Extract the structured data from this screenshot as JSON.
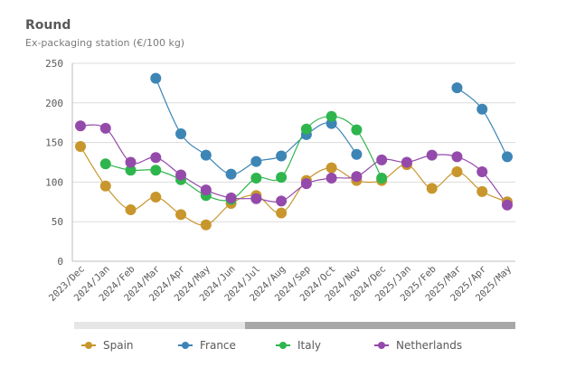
{
  "header": {
    "title": "Round",
    "subtitle": "Ex-packaging station (€/100 kg)"
  },
  "chart_data": {
    "type": "line",
    "title": "Round",
    "subtitle": "Ex-packaging station (€/100 kg)",
    "xlabel": "",
    "ylabel": "",
    "ylim": [
      0,
      250
    ],
    "yticks": [
      0,
      50,
      100,
      150,
      200,
      250
    ],
    "grid": true,
    "legend_position": "bottom",
    "categories": [
      "2023/Dec",
      "2024/Jan",
      "2024/Feb",
      "2024/Mar",
      "2024/Apr",
      "2024/May",
      "2024/Jun",
      "2024/Jul",
      "2024/Aug",
      "2024/Sep",
      "2024/Oct",
      "2024/Nov",
      "2024/Dec",
      "2025/Jan",
      "2025/Feb",
      "2025/Mar",
      "2025/Apr",
      "2025/May"
    ],
    "series": [
      {
        "name": "Spain",
        "color": "#c8962d",
        "values": [
          145,
          95,
          65,
          81,
          59,
          46,
          73,
          83,
          61,
          102,
          118,
          102,
          102,
          122,
          92,
          113,
          88,
          75
        ]
      },
      {
        "name": "France",
        "color": "#3d85b5",
        "values": [
          null,
          null,
          null,
          231,
          161,
          134,
          110,
          126,
          133,
          160,
          174,
          135,
          null,
          null,
          null,
          219,
          192,
          132
        ]
      },
      {
        "name": "Italy",
        "color": "#2fb54d",
        "values": [
          null,
          123,
          115,
          115,
          103,
          83,
          78,
          105,
          106,
          167,
          183,
          166,
          105,
          null,
          null,
          null,
          null,
          null
        ]
      },
      {
        "name": "Netherlands",
        "color": "#944aab",
        "values": [
          171,
          168,
          125,
          131,
          109,
          90,
          80,
          79,
          76,
          98,
          105,
          107,
          128,
          125,
          134,
          132,
          113,
          71
        ]
      }
    ]
  }
}
